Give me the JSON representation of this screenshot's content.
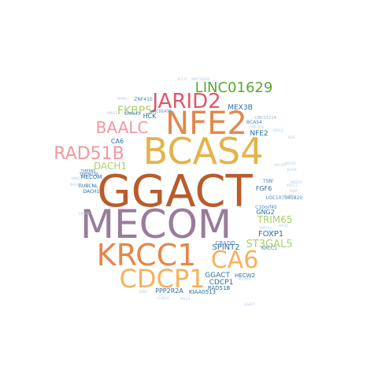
{
  "palette": {
    "green": "#5aa832",
    "red": "#e0566a",
    "orange": "#e4874a",
    "gold": "#e2b44a",
    "brown": "#b85c2c",
    "purple": "#9a7b9c",
    "pink": "#f3979f",
    "lightgreen": "#a9d06a",
    "mint": "#8fd1a3",
    "lightorange": "#f5b25b",
    "blue": "#2c6fa0",
    "midblue": "#4a84b8",
    "lightblue": "#8fb7d8",
    "paleblue": "#b3cde3"
  },
  "words": [
    {
      "text": "GGACT",
      "color": "brown"
    },
    {
      "text": "BCAS4",
      "color": "gold"
    },
    {
      "text": "MECOM",
      "color": "purple"
    },
    {
      "text": "NFE2",
      "color": "orange"
    },
    {
      "text": "KRCC1",
      "color": "orange"
    },
    {
      "text": "CDCP1",
      "color": "lightorange"
    },
    {
      "text": "CA6",
      "color": "lightorange"
    },
    {
      "text": "JARID2",
      "color": "red"
    },
    {
      "text": "LINC01629",
      "color": "green"
    },
    {
      "text": "RAD51B",
      "color": "pink"
    },
    {
      "text": "BAALC",
      "color": "pink"
    },
    {
      "text": "ST3GAL5",
      "color": "lightgreen"
    },
    {
      "text": "TRIM65",
      "color": "lightgreen"
    },
    {
      "text": "FKBP5",
      "color": "lightgreen"
    },
    {
      "text": "DACH1",
      "color": "lightgreen"
    },
    {
      "text": "MEX3B",
      "color": "blue"
    },
    {
      "text": "NFE2",
      "color": "blue"
    },
    {
      "text": "FOXP1",
      "color": "blue"
    },
    {
      "text": "SPINT2",
      "color": "blue"
    },
    {
      "text": "GGACT",
      "color": "blue"
    },
    {
      "text": "CDCP1",
      "color": "blue"
    },
    {
      "text": "GNG2",
      "color": "blue"
    },
    {
      "text": "FGF6",
      "color": "blue"
    },
    {
      "text": "CA6",
      "color": "blue"
    },
    {
      "text": "HCK",
      "color": "blue"
    },
    {
      "text": "MECOM",
      "color": "blue"
    },
    {
      "text": "RUBCNL",
      "color": "blue"
    },
    {
      "text": "DACH1",
      "color": "blue"
    },
    {
      "text": "PPP2R2A",
      "color": "blue"
    },
    {
      "text": "KIAA0513",
      "color": "blue"
    },
    {
      "text": "RAD51B",
      "color": "blue"
    },
    {
      "text": "HECW2",
      "color": "blue"
    },
    {
      "text": "CBADD",
      "color": "midblue"
    },
    {
      "text": "KRCC1",
      "color": "midblue"
    },
    {
      "text": "LOC107985820",
      "color": "midblue"
    },
    {
      "text": "TSN",
      "color": "midblue"
    },
    {
      "text": "ZNF410",
      "color": "midblue"
    },
    {
      "text": "GPR143",
      "color": "midblue"
    },
    {
      "text": "LINC01478",
      "color": "midblue"
    },
    {
      "text": "BCAS4",
      "color": "midblue"
    },
    {
      "text": "TMEM236",
      "color": "midblue"
    },
    {
      "text": "THEMIS",
      "color": "midblue"
    },
    {
      "text": "C10orf45",
      "color": "midblue"
    },
    {
      "text": "LINC01214",
      "color": "lightblue"
    },
    {
      "text": "BCL7C",
      "color": "paleblue"
    },
    {
      "text": "MIR7162HG",
      "color": "paleblue"
    },
    {
      "text": "MECOM",
      "color": "paleblue"
    },
    {
      "text": "PPP2CB",
      "color": "paleblue"
    },
    {
      "text": "SORL1",
      "color": "paleblue"
    },
    {
      "text": "MYLK4",
      "color": "paleblue"
    },
    {
      "text": "PECAM1",
      "color": "paleblue"
    },
    {
      "text": "POLE3",
      "color": "paleblue"
    },
    {
      "text": "CLRE1A",
      "color": "paleblue"
    },
    {
      "text": "GOVT2",
      "color": "paleblue"
    },
    {
      "text": "MEGF6",
      "color": "paleblue"
    },
    {
      "text": "KRCC1",
      "color": "paleblue"
    },
    {
      "text": "TRPM3",
      "color": "paleblue"
    },
    {
      "text": "SHISA3",
      "color": "paleblue"
    },
    {
      "text": "HMX1",
      "color": "paleblue"
    },
    {
      "text": "ANKS1",
      "color": "paleblue"
    },
    {
      "text": "CCRN",
      "color": "paleblue"
    },
    {
      "text": "FBN1",
      "color": "paleblue"
    },
    {
      "text": "ZNF410",
      "color": "paleblue"
    },
    {
      "text": "SPINT2",
      "color": "paleblue"
    },
    {
      "text": "GGACT",
      "color": "paleblue"
    },
    {
      "text": "LOC",
      "color": "paleblue"
    },
    {
      "text": "MIR4",
      "color": "paleblue"
    },
    {
      "text": "ELOVL",
      "color": "paleblue"
    },
    {
      "text": "ISG20",
      "color": "paleblue"
    },
    {
      "text": "RGS",
      "color": "paleblue"
    }
  ]
}
